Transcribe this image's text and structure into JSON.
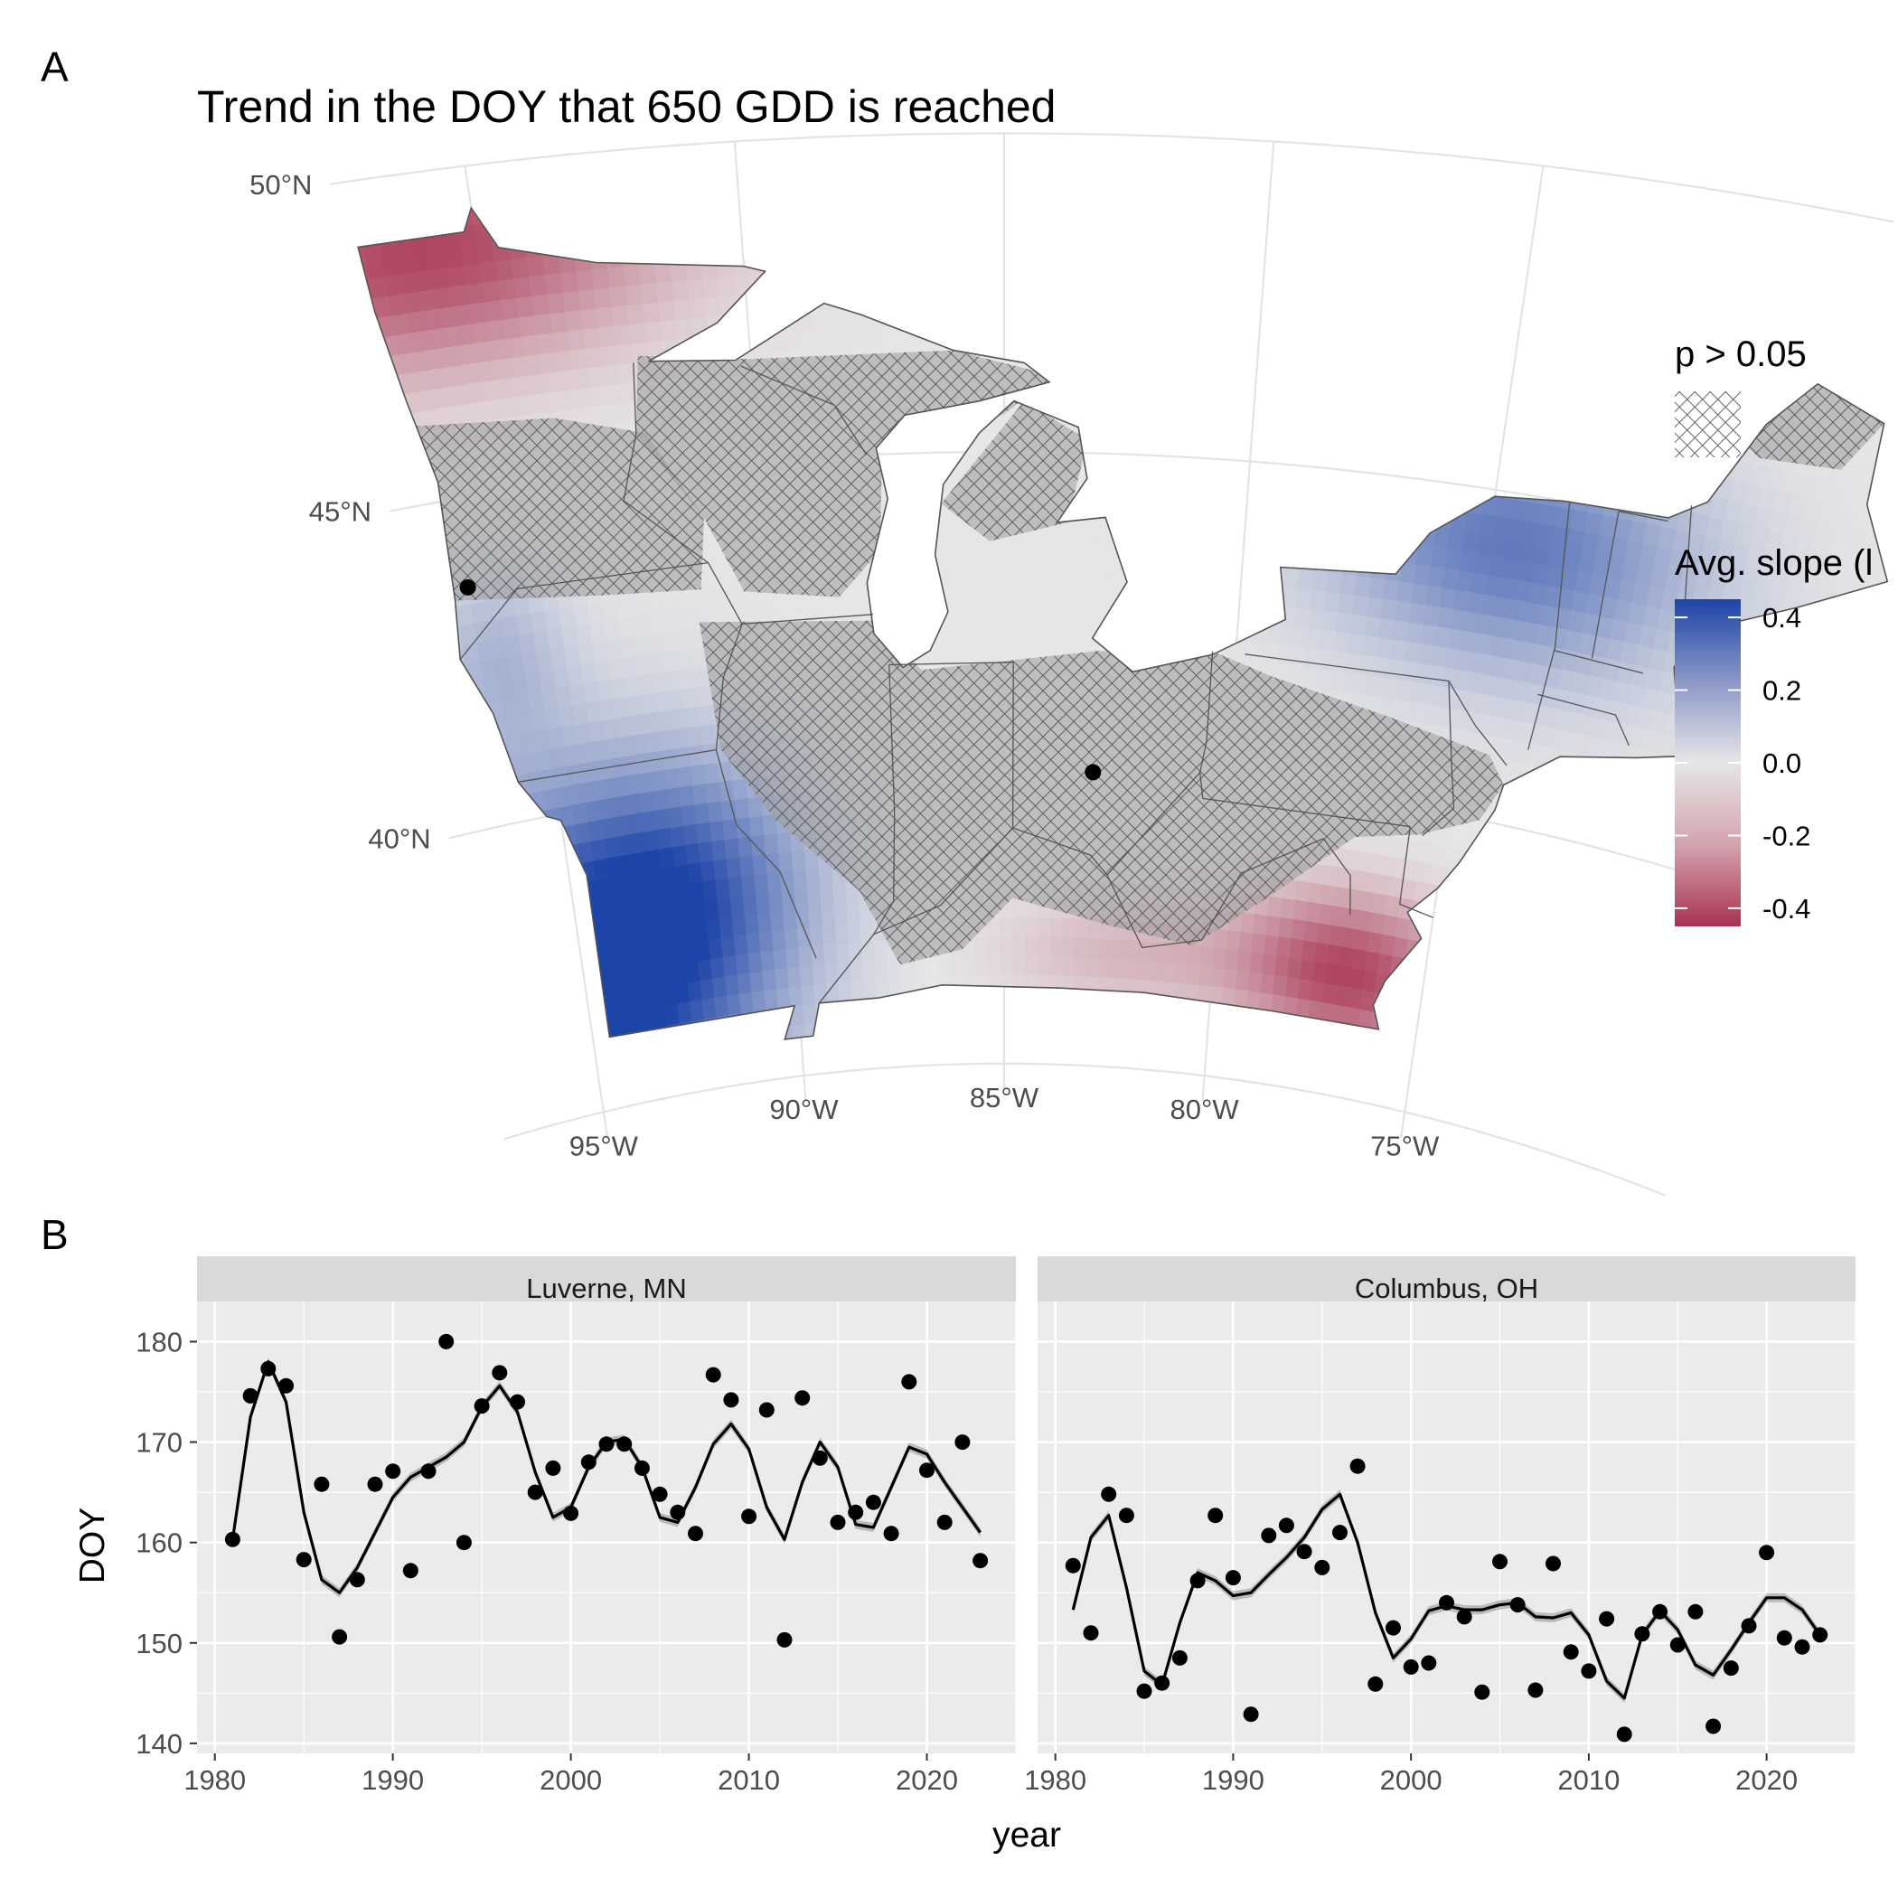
{
  "panels": {
    "a_label": "A",
    "b_label": "B"
  },
  "chart_data": [
    {
      "type": "heatmap",
      "panel": "A",
      "title": "Trend in the DOY that 650 GDD is reached",
      "lat_ticks": [
        "50°N",
        "45°N",
        "40°N"
      ],
      "lon_ticks": [
        "95°W",
        "90°W",
        "85°W",
        "80°W",
        "75°W"
      ],
      "legend_pattern_title": "p > 0.05",
      "legend_color_title": "Avg. slope (l",
      "legend_ticks": [
        "0.4",
        "0.2",
        "0.0",
        "-0.2",
        "-0.4"
      ],
      "color_range": [
        -0.45,
        0.45
      ],
      "colors": {
        "low": "#a8324f",
        "mid": "#e6e6e6",
        "high": "#1d44a8"
      },
      "locations": [
        {
          "name": "Luverne, MN",
          "lon": -96.2,
          "lat": 43.65
        },
        {
          "name": "Columbus, OH",
          "lon": -83.0,
          "lat": 40.0
        }
      ]
    },
    {
      "type": "line",
      "panel": "B",
      "xlabel": "year",
      "ylabel": "DOY",
      "xlim": [
        1979,
        2025
      ],
      "ylim": [
        139,
        184
      ],
      "x_ticks": [
        1980,
        1990,
        2000,
        2010,
        2020
      ],
      "y_ticks": [
        140,
        150,
        160,
        170,
        180
      ],
      "facets": [
        {
          "name": "Luverne, MN",
          "years": [
            1981,
            1982,
            1983,
            1984,
            1985,
            1986,
            1987,
            1988,
            1989,
            1990,
            1991,
            1992,
            1993,
            1994,
            1995,
            1996,
            1997,
            1998,
            1999,
            2000,
            2001,
            2002,
            2003,
            2004,
            2005,
            2006,
            2007,
            2008,
            2009,
            2010,
            2011,
            2012,
            2013,
            2014,
            2015,
            2016,
            2017,
            2018,
            2019,
            2020,
            2021,
            2022,
            2023
          ],
          "points": [
            160.3,
            174.6,
            177.3,
            175.6,
            158.3,
            165.8,
            150.6,
            156.3,
            165.8,
            167.1,
            157.2,
            167.1,
            180.0,
            160.0,
            173.6,
            176.9,
            174.0,
            165.0,
            167.4,
            162.9,
            168.0,
            169.8,
            169.8,
            167.4,
            164.8,
            163.0,
            160.9,
            176.7,
            174.2,
            162.6,
            173.2,
            150.3,
            174.4,
            168.4,
            162.0,
            163.0,
            164.0,
            160.9,
            176.0,
            167.2,
            162.0,
            170.0,
            158.2
          ],
          "trend": [
            160.3,
            172.5,
            178.0,
            174.0,
            163.0,
            156.3,
            155.0,
            157.5,
            161.0,
            164.5,
            166.5,
            167.5,
            168.5,
            170.0,
            173.5,
            175.6,
            173.0,
            167.0,
            162.5,
            163.5,
            167.5,
            170.0,
            170.3,
            167.5,
            162.5,
            162.0,
            165.5,
            169.8,
            171.8,
            169.3,
            163.5,
            160.3,
            166.0,
            170.0,
            167.5,
            161.8,
            161.5,
            165.5,
            169.5,
            168.8,
            166.0,
            163.5,
            161.0
          ]
        },
        {
          "name": "Columbus, OH",
          "years": [
            1981,
            1982,
            1983,
            1984,
            1985,
            1986,
            1987,
            1988,
            1989,
            1990,
            1991,
            1992,
            1993,
            1994,
            1995,
            1996,
            1997,
            1998,
            1999,
            2000,
            2001,
            2002,
            2003,
            2004,
            2005,
            2006,
            2007,
            2008,
            2009,
            2010,
            2011,
            2012,
            2013,
            2014,
            2015,
            2016,
            2017,
            2018,
            2019,
            2020,
            2021,
            2022,
            2023
          ],
          "points": [
            157.7,
            151.0,
            164.8,
            162.7,
            145.2,
            146.0,
            148.5,
            156.2,
            162.7,
            156.5,
            142.9,
            160.7,
            161.7,
            159.1,
            157.5,
            161.0,
            167.6,
            145.9,
            151.5,
            147.6,
            148.0,
            154.0,
            152.6,
            145.1,
            158.1,
            153.8,
            145.3,
            157.9,
            149.1,
            147.2,
            152.4,
            140.9,
            150.9,
            153.1,
            149.8,
            153.1,
            141.7,
            147.5,
            151.7,
            159.0,
            150.5,
            149.6,
            150.8
          ],
          "trend": [
            153.3,
            160.5,
            162.7,
            155.5,
            147.2,
            145.8,
            152.0,
            157.0,
            156.2,
            154.7,
            155.0,
            156.8,
            158.5,
            160.5,
            163.3,
            164.8,
            160.0,
            153.0,
            148.5,
            150.4,
            153.2,
            153.7,
            153.3,
            153.3,
            153.8,
            154.0,
            152.6,
            152.5,
            153.0,
            150.8,
            146.2,
            144.5,
            150.8,
            153.2,
            151.3,
            147.8,
            146.8,
            149.3,
            152.0,
            154.5,
            154.5,
            153.3,
            150.8
          ]
        }
      ]
    }
  ]
}
